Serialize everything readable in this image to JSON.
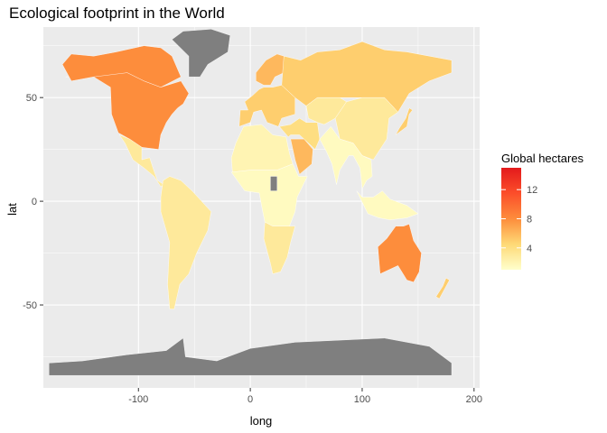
{
  "title": "Ecological footprint in the World",
  "axes": {
    "xlabel": "long",
    "ylabel": "lat",
    "xticks": [
      -100,
      0,
      100,
      200
    ],
    "yticks": [
      50,
      0,
      -50
    ]
  },
  "legend": {
    "title": "Global hectares",
    "ticks": [
      12,
      8,
      4
    ],
    "placement": "right",
    "colors": {
      "low": "#ffffcc",
      "mid": "#fd8d3c",
      "high": "#e31a1c"
    }
  },
  "colors": {
    "panel": "#ebebeb",
    "grid": "#ffffff",
    "no_data": "#7f7f7f"
  },
  "chart_data": {
    "type": "heatmap",
    "title": "Ecological footprint in the World",
    "xlabel": "long",
    "ylabel": "lat",
    "xlim": [
      -185,
      205
    ],
    "ylim": [
      -90,
      84
    ],
    "legend_title": "Global hectares",
    "scale": {
      "min": 1,
      "max": 15
    },
    "regions": [
      {
        "id": "north-america",
        "value": 8
      },
      {
        "id": "alaska-canada-north",
        "value": 8
      },
      {
        "id": "greenland",
        "value": null
      },
      {
        "id": "mexico-central-america",
        "value": 3
      },
      {
        "id": "south-america",
        "value": 3
      },
      {
        "id": "europe",
        "value": 5
      },
      {
        "id": "scandinavia",
        "value": 6
      },
      {
        "id": "russia",
        "value": 5
      },
      {
        "id": "middle-east",
        "value": 4
      },
      {
        "id": "saudi-arabia",
        "value": 6
      },
      {
        "id": "central-asia",
        "value": 3
      },
      {
        "id": "china-mongolia",
        "value": 3
      },
      {
        "id": "india-se-asia",
        "value": 1.5
      },
      {
        "id": "indonesia",
        "value": 1.5
      },
      {
        "id": "north-africa",
        "value": 2
      },
      {
        "id": "sub-saharan-africa",
        "value": 1.5
      },
      {
        "id": "southern-africa",
        "value": 3
      },
      {
        "id": "australia",
        "value": 8
      },
      {
        "id": "new-zealand",
        "value": 5
      },
      {
        "id": "japan",
        "value": 5
      },
      {
        "id": "antarctica",
        "value": null
      },
      {
        "id": "african-gaps",
        "value": null
      }
    ]
  }
}
